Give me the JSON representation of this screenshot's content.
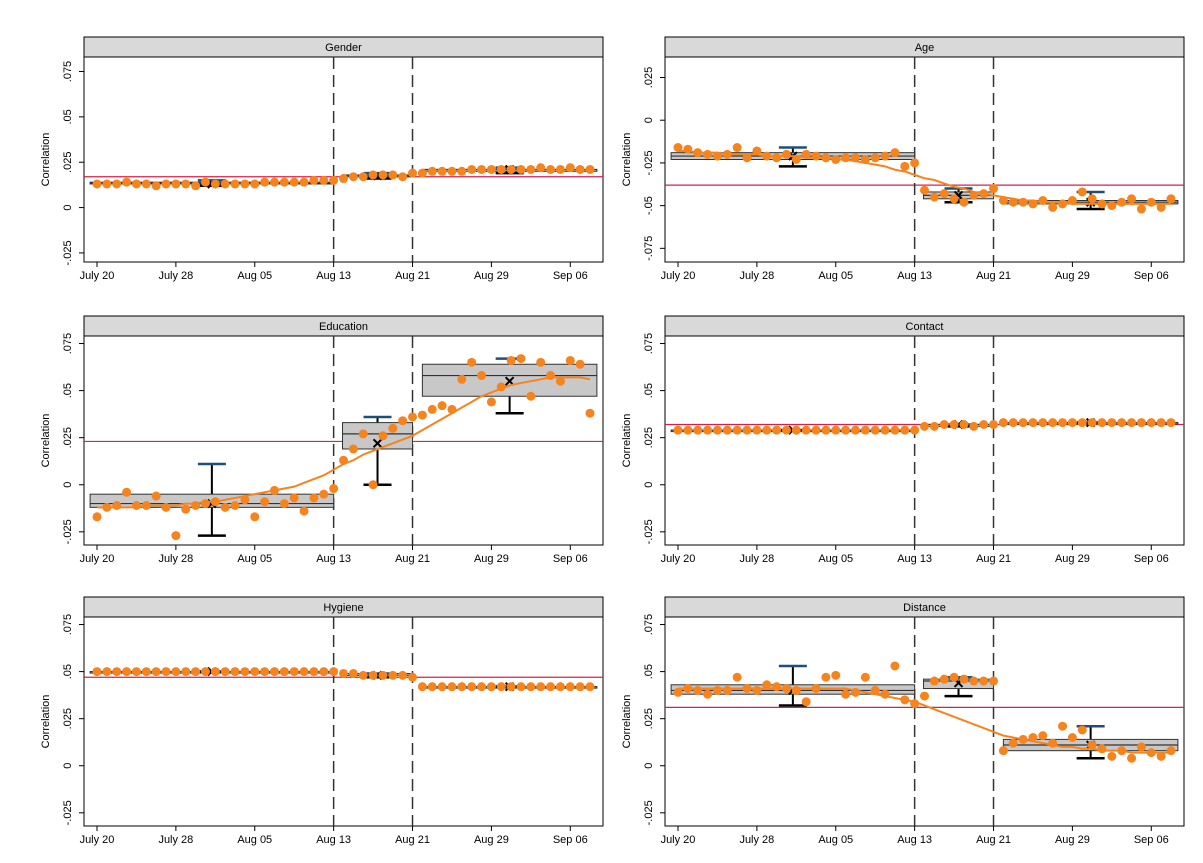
{
  "chart_data": [
    {
      "type": "box-scatter",
      "title": "Gender",
      "ylabel": "Correlation",
      "categories": [
        "July 20",
        null,
        null,
        null,
        null,
        null,
        null,
        null,
        "July 28",
        null,
        null,
        null,
        null,
        null,
        null,
        null,
        "Aug 05",
        null,
        null,
        null,
        null,
        null,
        null,
        null,
        "Aug 13",
        null,
        null,
        null,
        null,
        null,
        null,
        null,
        "Aug 21",
        null,
        null,
        null,
        null,
        null,
        null,
        null,
        "Aug 29",
        null,
        null,
        null,
        null,
        null,
        null,
        null,
        "Sep 06",
        null,
        null
      ],
      "values": [
        0.013,
        0.013,
        0.013,
        0.014,
        0.013,
        0.013,
        0.012,
        0.013,
        0.013,
        0.013,
        0.012,
        0.014,
        0.013,
        0.013,
        0.013,
        0.013,
        0.013,
        0.014,
        0.014,
        0.014,
        0.014,
        0.014,
        0.015,
        0.015,
        0.015,
        0.016,
        0.017,
        0.017,
        0.018,
        0.018,
        0.018,
        0.017,
        0.019,
        0.019,
        0.02,
        0.02,
        0.02,
        0.02,
        0.021,
        0.021,
        0.021,
        0.021,
        0.021,
        0.021,
        0.021,
        0.022,
        0.021,
        0.021,
        0.022,
        0.021,
        0.021
      ],
      "boxes": [
        {
          "q1": 0.013,
          "median": 0.0135,
          "q3": 0.014,
          "whisker_low": 0.012,
          "whisker_high": 0.015,
          "mean": 0.013
        },
        {
          "q1": 0.017,
          "median": 0.0175,
          "q3": 0.018,
          "whisker_low": 0.016,
          "whisker_high": 0.019,
          "mean": 0.0175
        },
        {
          "q1": 0.02,
          "median": 0.021,
          "q3": 0.021,
          "whisker_low": 0.019,
          "whisker_high": 0.022,
          "mean": 0.021
        }
      ],
      "hline": 0.017,
      "vlines": [
        "Aug 13",
        "Aug 21"
      ],
      "ylim": [
        -0.03,
        0.083
      ],
      "yticks": [
        {
          "value": -0.025,
          "label": "-.025"
        },
        0,
        {
          "value": 0.025,
          "label": ".025"
        },
        {
          "value": 0.05,
          "label": ".05"
        },
        {
          "value": 0.075,
          "label": ".075"
        }
      ],
      "color": "#f5841f",
      "hline_color": "#d6204e"
    },
    {
      "type": "box-scatter",
      "title": "Age",
      "ylabel": "Correlation",
      "categories": [
        "July 20",
        null,
        null,
        null,
        null,
        null,
        null,
        null,
        "July 28",
        null,
        null,
        null,
        null,
        null,
        null,
        null,
        "Aug 05",
        null,
        null,
        null,
        null,
        null,
        null,
        null,
        "Aug 13",
        null,
        null,
        null,
        null,
        null,
        null,
        null,
        "Aug 21",
        null,
        null,
        null,
        null,
        null,
        null,
        null,
        "Aug 29",
        null,
        null,
        null,
        null,
        null,
        null,
        null,
        "Sep 06",
        null,
        null
      ],
      "values": [
        -0.016,
        -0.017,
        -0.019,
        -0.02,
        -0.021,
        -0.02,
        -0.016,
        -0.022,
        -0.018,
        -0.021,
        -0.022,
        -0.02,
        -0.023,
        -0.02,
        -0.021,
        -0.022,
        -0.023,
        -0.022,
        -0.022,
        -0.023,
        -0.022,
        -0.021,
        -0.019,
        -0.027,
        -0.025,
        -0.041,
        -0.045,
        -0.043,
        -0.046,
        -0.048,
        -0.044,
        -0.043,
        -0.04,
        -0.047,
        -0.048,
        -0.048,
        -0.049,
        -0.047,
        -0.051,
        -0.049,
        -0.047,
        -0.042,
        -0.046,
        -0.049,
        -0.05,
        -0.048,
        -0.046,
        -0.052,
        -0.048,
        -0.051,
        -0.046
      ],
      "trend": [
        -0.018,
        -0.018,
        -0.019,
        -0.019,
        -0.019,
        -0.02,
        -0.02,
        -0.02,
        -0.02,
        -0.021,
        -0.021,
        -0.021,
        -0.021,
        -0.022,
        -0.022,
        -0.022,
        -0.023,
        -0.023,
        -0.024,
        -0.025,
        -0.026,
        -0.027,
        -0.029,
        -0.03,
        -0.032,
        -0.034,
        -0.035,
        -0.037,
        -0.039,
        -0.04,
        -0.042,
        -0.043,
        -0.044,
        -0.045,
        -0.046,
        -0.047,
        -0.047,
        -0.048,
        -0.048,
        -0.048,
        -0.049,
        -0.049,
        -0.049,
        -0.049,
        -0.049,
        -0.049,
        -0.049,
        -0.049,
        -0.049,
        -0.049,
        -0.049
      ],
      "boxes": [
        {
          "q1": -0.023,
          "median": -0.021,
          "q3": -0.019,
          "whisker_low": -0.027,
          "whisker_high": -0.016,
          "mean": -0.021
        },
        {
          "q1": -0.046,
          "median": -0.044,
          "q3": -0.042,
          "whisker_low": -0.048,
          "whisker_high": -0.04,
          "mean": -0.044
        },
        {
          "q1": -0.049,
          "median": -0.048,
          "q3": -0.047,
          "whisker_low": -0.052,
          "whisker_high": -0.042,
          "mean": -0.048
        }
      ],
      "hline": -0.038,
      "vlines": [
        "Aug 13",
        "Aug 21"
      ],
      "ylim": [
        -0.083,
        0.037
      ],
      "yticks": [
        {
          "value": -0.075,
          "label": "-.075"
        },
        {
          "value": -0.05,
          "label": "-.05"
        },
        {
          "value": -0.025,
          "label": "-.025"
        },
        0,
        {
          "value": 0.025,
          "label": ".025"
        }
      ],
      "color": "#f5841f",
      "hline_color": "#d6204e"
    },
    {
      "type": "box-scatter",
      "title": "Education",
      "ylabel": "Correlation",
      "categories": [
        "July 20",
        null,
        null,
        null,
        null,
        null,
        null,
        null,
        "July 28",
        null,
        null,
        null,
        null,
        null,
        null,
        null,
        "Aug 05",
        null,
        null,
        null,
        null,
        null,
        null,
        null,
        "Aug 13",
        null,
        null,
        null,
        null,
        null,
        null,
        null,
        "Aug 21",
        null,
        null,
        null,
        null,
        null,
        null,
        null,
        "Aug 29",
        null,
        null,
        null,
        null,
        null,
        null,
        null,
        "Sep 06",
        null,
        null
      ],
      "values": [
        -0.017,
        -0.012,
        -0.011,
        -0.004,
        -0.011,
        -0.011,
        -0.006,
        -0.012,
        -0.027,
        -0.013,
        -0.011,
        -0.01,
        -0.009,
        -0.012,
        -0.011,
        -0.008,
        -0.017,
        -0.009,
        -0.003,
        -0.01,
        -0.007,
        -0.014,
        -0.007,
        -0.005,
        -0.002,
        0.013,
        0.019,
        0.027,
        0.0,
        0.026,
        0.03,
        0.034,
        0.036,
        0.037,
        0.04,
        0.042,
        0.04,
        0.056,
        0.065,
        0.058,
        0.044,
        0.052,
        0.066,
        0.067,
        0.047,
        0.065,
        0.058,
        0.055,
        0.066,
        0.064,
        0.038
      ],
      "trend": [
        -0.012,
        -0.012,
        -0.012,
        -0.012,
        -0.012,
        -0.011,
        -0.011,
        -0.011,
        -0.011,
        -0.01,
        -0.01,
        -0.009,
        -0.009,
        -0.008,
        -0.007,
        -0.006,
        -0.005,
        -0.004,
        -0.003,
        -0.002,
        -0.001,
        0.001,
        0.003,
        0.005,
        0.008,
        0.011,
        0.013,
        0.016,
        0.018,
        0.02,
        0.022,
        0.024,
        0.026,
        0.029,
        0.032,
        0.035,
        0.038,
        0.041,
        0.044,
        0.047,
        0.049,
        0.051,
        0.053,
        0.054,
        0.055,
        0.056,
        0.057,
        0.057,
        0.057,
        0.057,
        0.056
      ],
      "boxes": [
        {
          "q1": -0.012,
          "median": -0.01,
          "q3": -0.005,
          "whisker_low": -0.027,
          "whisker_high": 0.011,
          "mean": -0.01
        },
        {
          "q1": 0.019,
          "median": 0.027,
          "q3": 0.033,
          "whisker_low": 0.0,
          "whisker_high": 0.036,
          "mean": 0.022
        },
        {
          "q1": 0.047,
          "median": 0.058,
          "q3": 0.064,
          "whisker_low": 0.038,
          "whisker_high": 0.067,
          "mean": 0.055
        }
      ],
      "hline": 0.023,
      "vlines": [
        "Aug 13",
        "Aug 21"
      ],
      "ylim": [
        -0.032,
        0.079
      ],
      "yticks": [
        {
          "value": -0.025,
          "label": "-.025"
        },
        0,
        {
          "value": 0.025,
          "label": ".025"
        },
        {
          "value": 0.05,
          "label": ".05"
        },
        {
          "value": 0.075,
          "label": ".075"
        }
      ],
      "color": "#f5841f",
      "hline_color": "#d6204e"
    },
    {
      "type": "box-scatter",
      "title": "Contact",
      "ylabel": "Correlation",
      "categories": [
        "July 20",
        null,
        null,
        null,
        null,
        null,
        null,
        null,
        "July 28",
        null,
        null,
        null,
        null,
        null,
        null,
        null,
        "Aug 05",
        null,
        null,
        null,
        null,
        null,
        null,
        null,
        "Aug 13",
        null,
        null,
        null,
        null,
        null,
        null,
        null,
        "Aug 21",
        null,
        null,
        null,
        null,
        null,
        null,
        null,
        "Aug 29",
        null,
        null,
        null,
        null,
        null,
        null,
        null,
        "Sep 06",
        null,
        null
      ],
      "values": [
        0.029,
        0.029,
        0.029,
        0.029,
        0.029,
        0.029,
        0.029,
        0.029,
        0.029,
        0.029,
        0.029,
        0.029,
        0.029,
        0.029,
        0.029,
        0.029,
        0.029,
        0.029,
        0.029,
        0.029,
        0.029,
        0.029,
        0.029,
        0.029,
        0.029,
        0.031,
        0.031,
        0.032,
        0.032,
        0.032,
        0.031,
        0.032,
        0.032,
        0.033,
        0.033,
        0.033,
        0.033,
        0.033,
        0.033,
        0.033,
        0.033,
        0.033,
        0.033,
        0.033,
        0.033,
        0.033,
        0.033,
        0.033,
        0.033,
        0.033,
        0.033
      ],
      "boxes": [
        {
          "q1": 0.029,
          "median": 0.029,
          "q3": 0.029,
          "whisker_low": 0.029,
          "whisker_high": 0.029,
          "mean": 0.029
        },
        {
          "q1": 0.031,
          "median": 0.032,
          "q3": 0.032,
          "whisker_low": 0.031,
          "whisker_high": 0.032,
          "mean": 0.032
        },
        {
          "q1": 0.033,
          "median": 0.033,
          "q3": 0.033,
          "whisker_low": 0.033,
          "whisker_high": 0.033,
          "mean": 0.033
        }
      ],
      "hline": 0.032,
      "vlines": [
        "Aug 13",
        "Aug 21"
      ],
      "ylim": [
        -0.032,
        0.079
      ],
      "yticks": [
        {
          "value": -0.025,
          "label": "-.025"
        },
        0,
        {
          "value": 0.025,
          "label": ".025"
        },
        {
          "value": 0.05,
          "label": ".05"
        },
        {
          "value": 0.075,
          "label": ".075"
        }
      ],
      "color": "#f5841f",
      "hline_color": "#d6204e"
    },
    {
      "type": "box-scatter",
      "title": "Hygiene",
      "ylabel": "Correlation",
      "categories": [
        "July 20",
        null,
        null,
        null,
        null,
        null,
        null,
        null,
        "July 28",
        null,
        null,
        null,
        null,
        null,
        null,
        null,
        "Aug 05",
        null,
        null,
        null,
        null,
        null,
        null,
        null,
        "Aug 13",
        null,
        null,
        null,
        null,
        null,
        null,
        null,
        "Aug 21",
        null,
        null,
        null,
        null,
        null,
        null,
        null,
        "Aug 29",
        null,
        null,
        null,
        null,
        null,
        null,
        null,
        "Sep 06",
        null,
        null
      ],
      "values": [
        0.05,
        0.05,
        0.05,
        0.05,
        0.05,
        0.05,
        0.05,
        0.05,
        0.05,
        0.05,
        0.05,
        0.05,
        0.05,
        0.05,
        0.05,
        0.05,
        0.05,
        0.05,
        0.05,
        0.05,
        0.05,
        0.05,
        0.05,
        0.05,
        0.05,
        0.049,
        0.049,
        0.048,
        0.048,
        0.048,
        0.048,
        0.048,
        0.047,
        0.042,
        0.042,
        0.042,
        0.042,
        0.042,
        0.042,
        0.042,
        0.042,
        0.042,
        0.042,
        0.042,
        0.042,
        0.042,
        0.042,
        0.042,
        0.042,
        0.042,
        0.042
      ],
      "boxes": [
        {
          "q1": 0.05,
          "median": 0.05,
          "q3": 0.05,
          "whisker_low": 0.05,
          "whisker_high": 0.05,
          "mean": 0.05
        },
        {
          "q1": 0.048,
          "median": 0.048,
          "q3": 0.049,
          "whisker_low": 0.047,
          "whisker_high": 0.049,
          "mean": 0.048
        },
        {
          "q1": 0.042,
          "median": 0.042,
          "q3": 0.042,
          "whisker_low": 0.042,
          "whisker_high": 0.042,
          "mean": 0.042
        }
      ],
      "hline": 0.047,
      "vlines": [
        "Aug 13",
        "Aug 21"
      ],
      "ylim": [
        -0.032,
        0.079
      ],
      "yticks": [
        {
          "value": -0.025,
          "label": "-.025"
        },
        0,
        {
          "value": 0.025,
          "label": ".025"
        },
        {
          "value": 0.05,
          "label": ".05"
        },
        {
          "value": 0.075,
          "label": ".075"
        }
      ],
      "color": "#f5841f",
      "hline_color": "#d6204e"
    },
    {
      "type": "box-scatter",
      "title": "Distance",
      "ylabel": "Correlation",
      "categories": [
        "July 20",
        null,
        null,
        null,
        null,
        null,
        null,
        null,
        "July 28",
        null,
        null,
        null,
        null,
        null,
        null,
        null,
        "Aug 05",
        null,
        null,
        null,
        null,
        null,
        null,
        null,
        "Aug 13",
        null,
        null,
        null,
        null,
        null,
        null,
        null,
        "Aug 21",
        null,
        null,
        null,
        null,
        null,
        null,
        null,
        "Aug 29",
        null,
        null,
        null,
        null,
        null,
        null,
        null,
        "Sep 06",
        null,
        null
      ],
      "values": [
        0.039,
        0.041,
        0.04,
        0.038,
        0.04,
        0.04,
        0.047,
        0.041,
        0.04,
        0.043,
        0.042,
        0.041,
        0.04,
        0.034,
        0.041,
        0.047,
        0.048,
        0.038,
        0.039,
        0.047,
        0.04,
        0.038,
        0.053,
        0.035,
        0.033,
        0.037,
        0.045,
        0.046,
        0.047,
        0.046,
        0.045,
        0.045,
        0.045,
        0.008,
        0.012,
        0.014,
        0.015,
        0.016,
        0.012,
        0.021,
        0.015,
        0.019,
        0.011,
        0.009,
        0.005,
        0.008,
        0.004,
        0.01,
        0.007,
        0.005,
        0.008
      ],
      "trend": [
        0.041,
        0.041,
        0.041,
        0.041,
        0.041,
        0.041,
        0.041,
        0.041,
        0.041,
        0.041,
        0.041,
        0.041,
        0.041,
        0.041,
        0.041,
        0.041,
        0.041,
        0.041,
        0.04,
        0.039,
        0.038,
        0.037,
        0.036,
        0.035,
        0.034,
        0.032,
        0.03,
        0.028,
        0.026,
        0.024,
        0.022,
        0.02,
        0.018,
        0.016,
        0.015,
        0.014,
        0.013,
        0.012,
        0.011,
        0.01,
        0.01,
        0.009,
        0.009,
        0.008,
        0.008,
        0.008,
        0.007,
        0.007,
        0.007,
        0.007,
        0.007
      ],
      "boxes": [
        {
          "q1": 0.038,
          "median": 0.04,
          "q3": 0.043,
          "whisker_low": 0.032,
          "whisker_high": 0.053,
          "mean": 0.04
        },
        {
          "q1": 0.041,
          "median": 0.045,
          "q3": 0.046,
          "whisker_low": 0.037,
          "whisker_high": 0.047,
          "mean": 0.044
        },
        {
          "q1": 0.008,
          "median": 0.011,
          "q3": 0.014,
          "whisker_low": 0.004,
          "whisker_high": 0.021,
          "mean": 0.011
        }
      ],
      "hline": 0.031,
      "vlines": [
        "Aug 13",
        "Aug 21"
      ],
      "ylim": [
        -0.032,
        0.079
      ],
      "yticks": [
        {
          "value": -0.025,
          "label": "-.025"
        },
        0,
        {
          "value": 0.025,
          "label": ".025"
        },
        {
          "value": 0.05,
          "label": ".05"
        },
        {
          "value": 0.075,
          "label": ".075"
        }
      ],
      "color": "#f5841f",
      "hline_color": "#d6204e"
    }
  ]
}
